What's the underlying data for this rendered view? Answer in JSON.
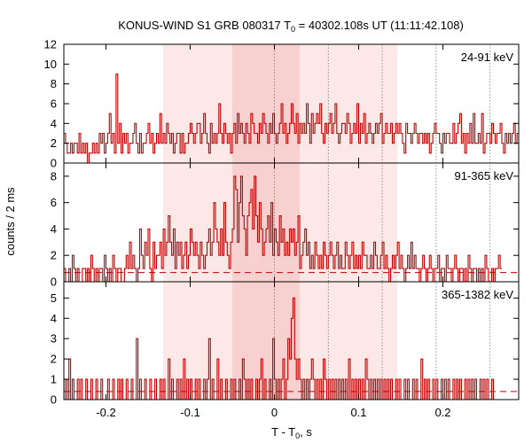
{
  "chart_data": {
    "type": "line",
    "title_prefix": "KONUS-WIND S1 GRB 080317 T",
    "title_sub": "0",
    "title_suffix": " = 40302.108s UT (11:11:42.108)",
    "xlabel_prefix": "T - T",
    "xlabel_sub": "0",
    "xlabel_suffix": ", s",
    "ylabel": "counts / 2 ms",
    "xlim": [
      -0.25,
      0.29
    ],
    "x_ticks": [
      -0.2,
      -0.1,
      0,
      0.1,
      0.2
    ],
    "x_tick_labels": [
      "-0.2",
      "-0.1",
      "0",
      "0.1",
      "0.2"
    ],
    "bin_width": 0.002,
    "line_color": "#c00000",
    "shaded_intervals": [
      {
        "x0": -0.132,
        "x1": -0.05,
        "level": "light",
        "color": "#fde8e8"
      },
      {
        "x0": -0.05,
        "x1": 0.03,
        "level": "medium",
        "color": "#f8d0d0"
      },
      {
        "x0": 0.03,
        "x1": 0.146,
        "level": "light",
        "color": "#fde8e8"
      }
    ],
    "vertical_dotted_lines": [
      0.0,
      0.064,
      0.128,
      0.192,
      0.256
    ],
    "panels": [
      {
        "label": "24-91 keV",
        "ylim": [
          0,
          12
        ],
        "y_ticks": [
          0,
          2,
          4,
          6,
          8,
          10,
          12
        ],
        "background_level": null,
        "x_start": -0.25,
        "counts": [
          3,
          2,
          1,
          1,
          2,
          1,
          2,
          2,
          1,
          3,
          1,
          2,
          1,
          2,
          0,
          1,
          1,
          2,
          1,
          2,
          1,
          3,
          2,
          3,
          1,
          2,
          3,
          5,
          2,
          3,
          1,
          9,
          2,
          4,
          1,
          3,
          2,
          3,
          1,
          2,
          2,
          3,
          4,
          2,
          1,
          3,
          1,
          2,
          2,
          3,
          4,
          2,
          3,
          1,
          2,
          3,
          2,
          5,
          2,
          3,
          2,
          4,
          3,
          2,
          3,
          1,
          2,
          3,
          3,
          1,
          3,
          1,
          2,
          2,
          3,
          4,
          3,
          2,
          3,
          4,
          4,
          2,
          3,
          5,
          3,
          2,
          1,
          4,
          2,
          3,
          2,
          3,
          6,
          3,
          2,
          4,
          3,
          2,
          3,
          1,
          3,
          4,
          2,
          5,
          3,
          4,
          3,
          2,
          4,
          3,
          2,
          5,
          4,
          3,
          3,
          2,
          4,
          3,
          5,
          4,
          3,
          2,
          4,
          3,
          5,
          3,
          2,
          3,
          4,
          6,
          3,
          4,
          2,
          3,
          4,
          6,
          4,
          3,
          5,
          2,
          4,
          3,
          4,
          3,
          6,
          4,
          2,
          5,
          3,
          4,
          5,
          4,
          6,
          3,
          2,
          4,
          3,
          4,
          5,
          3,
          4,
          6,
          3,
          2,
          3,
          4,
          4,
          3,
          5,
          4,
          2,
          3,
          4,
          3,
          6,
          2,
          4,
          3,
          5,
          2,
          3,
          4,
          3,
          2,
          3,
          4,
          3,
          4,
          5,
          2,
          3,
          4,
          3,
          3,
          4,
          2,
          3,
          4,
          3,
          4,
          3,
          2,
          1,
          4,
          3,
          3,
          2,
          3,
          4,
          3,
          2,
          3,
          3,
          2,
          3,
          2,
          3,
          1,
          2,
          3,
          4,
          3,
          3,
          2,
          1,
          3,
          2,
          3,
          3,
          2,
          2,
          4,
          2,
          3,
          4,
          5,
          2,
          3,
          1,
          3,
          2,
          4,
          2,
          5,
          2,
          2,
          3,
          2,
          5,
          1,
          2,
          3,
          3,
          2,
          4,
          3,
          2,
          3,
          3,
          4,
          2,
          1,
          3,
          2,
          3,
          2,
          3,
          4,
          2,
          3,
          2,
          1,
          3,
          2,
          4,
          2,
          3
        ]
      },
      {
        "label": "91-365 keV",
        "ylim": [
          0,
          9
        ],
        "y_ticks": [
          0,
          2,
          4,
          6,
          8
        ],
        "background_level": 0.7,
        "x_start": -0.25,
        "counts": [
          1,
          0,
          0,
          1,
          0,
          2,
          1,
          0,
          1,
          0,
          0,
          1,
          1,
          0,
          1,
          0,
          2,
          1,
          0,
          1,
          0,
          1,
          1,
          0,
          2,
          1,
          0,
          1,
          0,
          2,
          1,
          0,
          1,
          1,
          0,
          0,
          1,
          2,
          1,
          3,
          1,
          2,
          1,
          0,
          1,
          4,
          2,
          1,
          3,
          2,
          4,
          1,
          0,
          3,
          1,
          2,
          2,
          3,
          1,
          4,
          2,
          3,
          5,
          3,
          2,
          4,
          1,
          3,
          2,
          3,
          1,
          2,
          3,
          1,
          2,
          4,
          3,
          2,
          3,
          2,
          1,
          3,
          2,
          1,
          2,
          3,
          4,
          2,
          3,
          6,
          4,
          3,
          2,
          4,
          2,
          6,
          3,
          2,
          1,
          3,
          4,
          8,
          7,
          3,
          6,
          8,
          5,
          4,
          2,
          5,
          6,
          7,
          4,
          8,
          5,
          3,
          6,
          4,
          2,
          3,
          4,
          5,
          3,
          6,
          2,
          4,
          3,
          2,
          5,
          3,
          4,
          2,
          3,
          2,
          4,
          3,
          4,
          2,
          3,
          5,
          1,
          2,
          3,
          4,
          2,
          3,
          1,
          2,
          1,
          3,
          2,
          1,
          2,
          1,
          3,
          2,
          1,
          2,
          3,
          2,
          1,
          2,
          3,
          1,
          2,
          1,
          1,
          3,
          2,
          1,
          2,
          3,
          1,
          2,
          1,
          2,
          1,
          3,
          2,
          2,
          1,
          1,
          2,
          1,
          3,
          2,
          1,
          1,
          2,
          3,
          1,
          2,
          1,
          0,
          1,
          2,
          1,
          2,
          3,
          1,
          2,
          1,
          0,
          1,
          2,
          1,
          3,
          1,
          2,
          1,
          1,
          0,
          1,
          2,
          1,
          0,
          1,
          2,
          1,
          0,
          1,
          1,
          2,
          0,
          1,
          1,
          0,
          2,
          1,
          1,
          0,
          1,
          2,
          1,
          0,
          1,
          1,
          0,
          1,
          0,
          2,
          1,
          0,
          1,
          1,
          0,
          1,
          0,
          1,
          0,
          2,
          1,
          0,
          0,
          1,
          0,
          1,
          1,
          2,
          1
        ]
      },
      {
        "label": "365-1382 keV",
        "ylim": [
          0,
          5.8
        ],
        "y_ticks": [
          0,
          1,
          2,
          3,
          4,
          5
        ],
        "background_level": 0.4,
        "x_start": -0.25,
        "counts": [
          0,
          1,
          0,
          2,
          0,
          1,
          0,
          0,
          1,
          0,
          1,
          0,
          0,
          1,
          0,
          0,
          1,
          0,
          0,
          1,
          0,
          0,
          1,
          0,
          0,
          0,
          1,
          0,
          0,
          1,
          0,
          0,
          1,
          0,
          1,
          0,
          0,
          1,
          0,
          0,
          1,
          0,
          0,
          3,
          0,
          1,
          0,
          0,
          1,
          0,
          0,
          1,
          0,
          0,
          1,
          0,
          0,
          1,
          0,
          1,
          0,
          0,
          2,
          0,
          1,
          0,
          0,
          1,
          0,
          1,
          0,
          2,
          0,
          1,
          0,
          1,
          0,
          0,
          1,
          0,
          1,
          0,
          0,
          1,
          0,
          1,
          3,
          0,
          1,
          0,
          0,
          2,
          0,
          1,
          0,
          0,
          1,
          0,
          0,
          1,
          0,
          1,
          0,
          0,
          1,
          0,
          2,
          1,
          0,
          1,
          0,
          1,
          0,
          0,
          1,
          0,
          1,
          2,
          0,
          1,
          0,
          0,
          1,
          0,
          3,
          1,
          0,
          1,
          0,
          1,
          2,
          0,
          1,
          3,
          2,
          4,
          5,
          2,
          1,
          2,
          1,
          0,
          1,
          0,
          1,
          0,
          1,
          2,
          1,
          0,
          1,
          0,
          1,
          0,
          2,
          1,
          0,
          1,
          0,
          1,
          0,
          1,
          0,
          1,
          0,
          1,
          0,
          1,
          0,
          2,
          0,
          1,
          0,
          1,
          0,
          1,
          0,
          1,
          0,
          2,
          1,
          0,
          1,
          0,
          1,
          0,
          1,
          0,
          1,
          0,
          1,
          0,
          1,
          0,
          1,
          0,
          0,
          1,
          0,
          1,
          0,
          0,
          1,
          0,
          1,
          0,
          0,
          1,
          0,
          1,
          0,
          0,
          2,
          0,
          1,
          0,
          1,
          0,
          0,
          1,
          0,
          1,
          0,
          0,
          1,
          0,
          1,
          0,
          1,
          0,
          0,
          1,
          0,
          1,
          0,
          1,
          0,
          0,
          1,
          0,
          1,
          0,
          1,
          0,
          1,
          0,
          0,
          1,
          0,
          1,
          0,
          1,
          0,
          0,
          1,
          0
        ]
      }
    ]
  }
}
